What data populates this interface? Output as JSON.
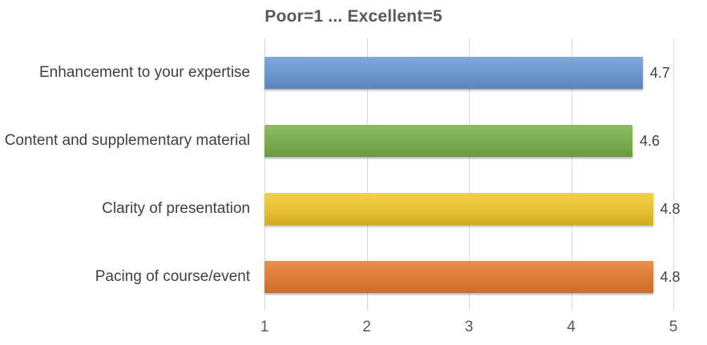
{
  "chart_data": {
    "type": "bar",
    "orientation": "horizontal",
    "title": "Poor=1 ... Excellent=5",
    "categories": [
      "Enhancement to your expertise",
      "Content and supplementary material",
      "Clarity of presentation",
      "Pacing of course/event"
    ],
    "values": [
      4.7,
      4.6,
      4.8,
      4.8
    ],
    "data_labels": [
      "4.7",
      "4.6",
      "4.8",
      "4.8"
    ],
    "bar_colors": [
      {
        "light": "#82A8DB",
        "base": "#6D9AD1",
        "dark": "#5A84BE"
      },
      {
        "light": "#8FBC64",
        "base": "#7DAE53",
        "dark": "#689B41"
      },
      {
        "light": "#F0D14E",
        "base": "#E9C337",
        "dark": "#D3AB23"
      },
      {
        "light": "#E8914F",
        "base": "#DF7E3B",
        "dark": "#CB6C2A"
      }
    ],
    "xticks": [
      "1",
      "2",
      "3",
      "4",
      "5"
    ],
    "xlim": [
      1,
      5
    ],
    "grid": true,
    "gridline_color": "#d9d9d9",
    "title_color": "#595959",
    "tick_label_color": "#595959",
    "data_label_color": "#404040",
    "legend": "none"
  }
}
